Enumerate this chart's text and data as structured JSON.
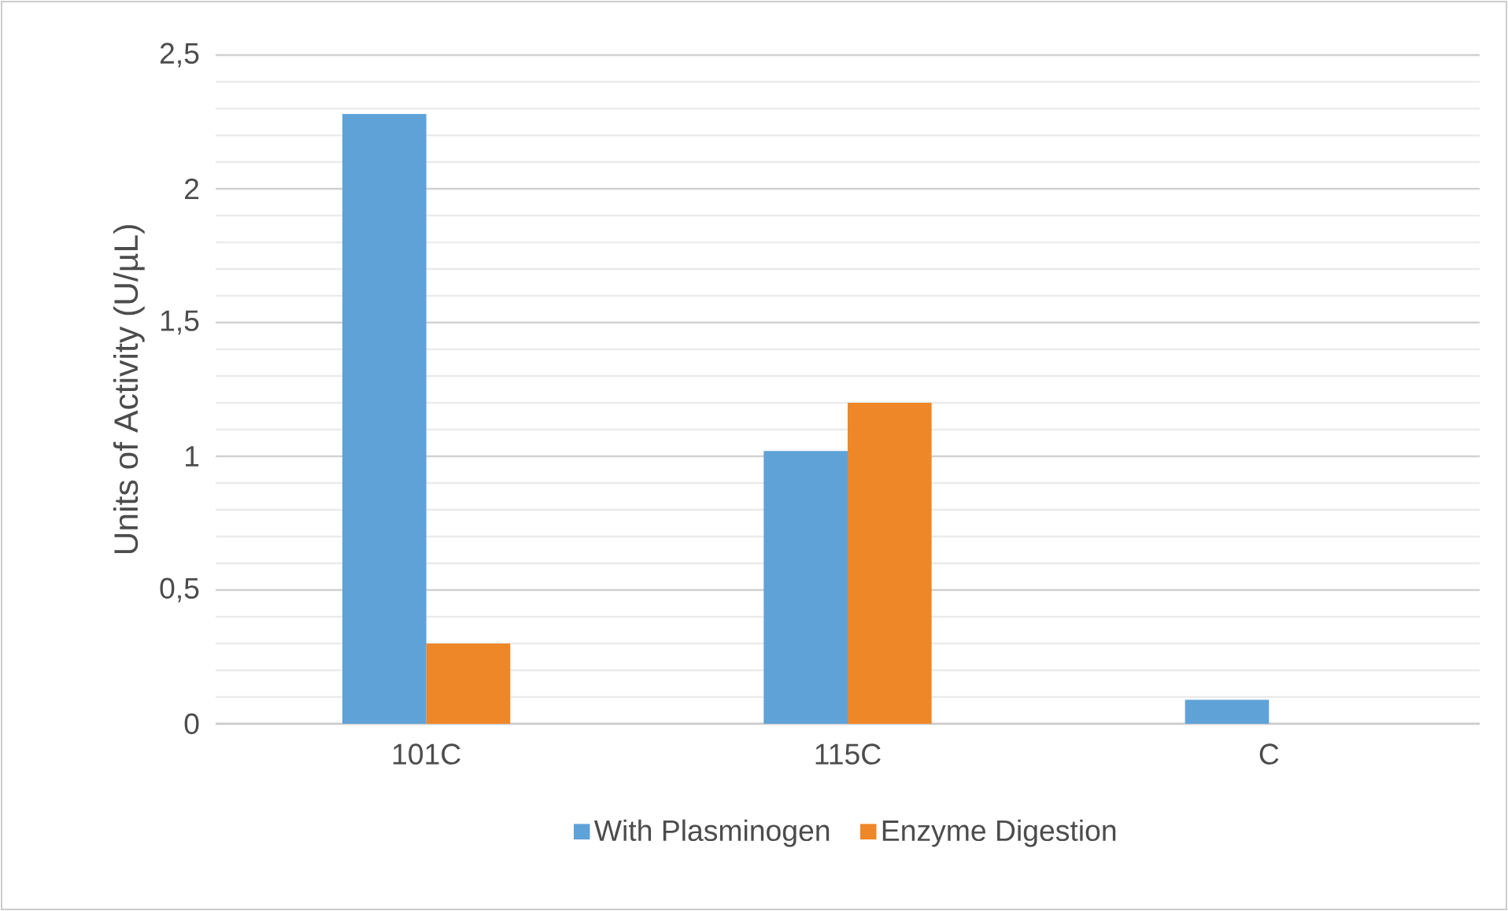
{
  "chart_data": {
    "type": "bar",
    "ylabel": "Units of Activity (U/µL)",
    "categories": [
      "101C",
      "115C",
      "C"
    ],
    "series": [
      {
        "name": "With Plasminogen",
        "color": "#5fa2d8",
        "values": [
          2.28,
          1.02,
          0.09
        ]
      },
      {
        "name": "Enzyme Digestion",
        "color": "#ee8728",
        "values": [
          0.3,
          1.2,
          0
        ]
      }
    ],
    "ylim": [
      0,
      2.5
    ],
    "yticks": [
      {
        "value": 0,
        "label": "0"
      },
      {
        "value": 0.5,
        "label": "0,5"
      },
      {
        "value": 1,
        "label": "1"
      },
      {
        "value": 1.5,
        "label": "1,5"
      },
      {
        "value": 2,
        "label": "2"
      },
      {
        "value": 2.5,
        "label": "2,5"
      }
    ],
    "grid": "y",
    "legend": "bottom"
  }
}
